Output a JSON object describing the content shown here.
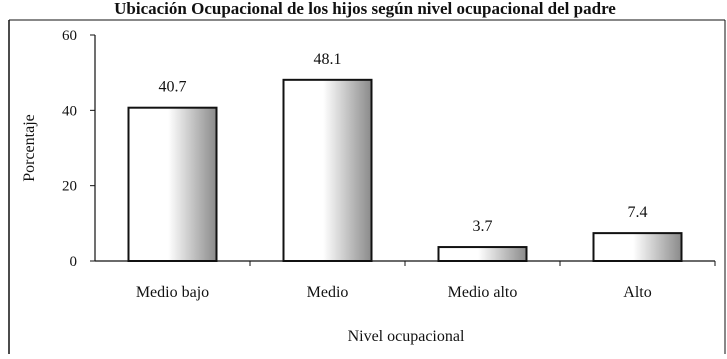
{
  "chart_data": {
    "type": "bar",
    "title": "Ubicación Ocupacional de los hijos según nivel ocupacional del padre",
    "xlabel": "Nivel ocupacional",
    "ylabel": "Porcentaje",
    "categories": [
      "Medio bajo",
      "Medio",
      "Medio alto",
      "Alto"
    ],
    "values": [
      40.7,
      48.1,
      3.7,
      7.4
    ],
    "data_labels": [
      "40.7",
      "48.1",
      "3.7",
      "7.4"
    ],
    "ylim": [
      0,
      60
    ],
    "yticks": [
      0,
      20,
      40,
      60
    ],
    "grid": false,
    "legend": "none",
    "bar_colors": {
      "edge": "#111111",
      "light": "#ffffff",
      "dark": "#8a8a8a"
    }
  }
}
